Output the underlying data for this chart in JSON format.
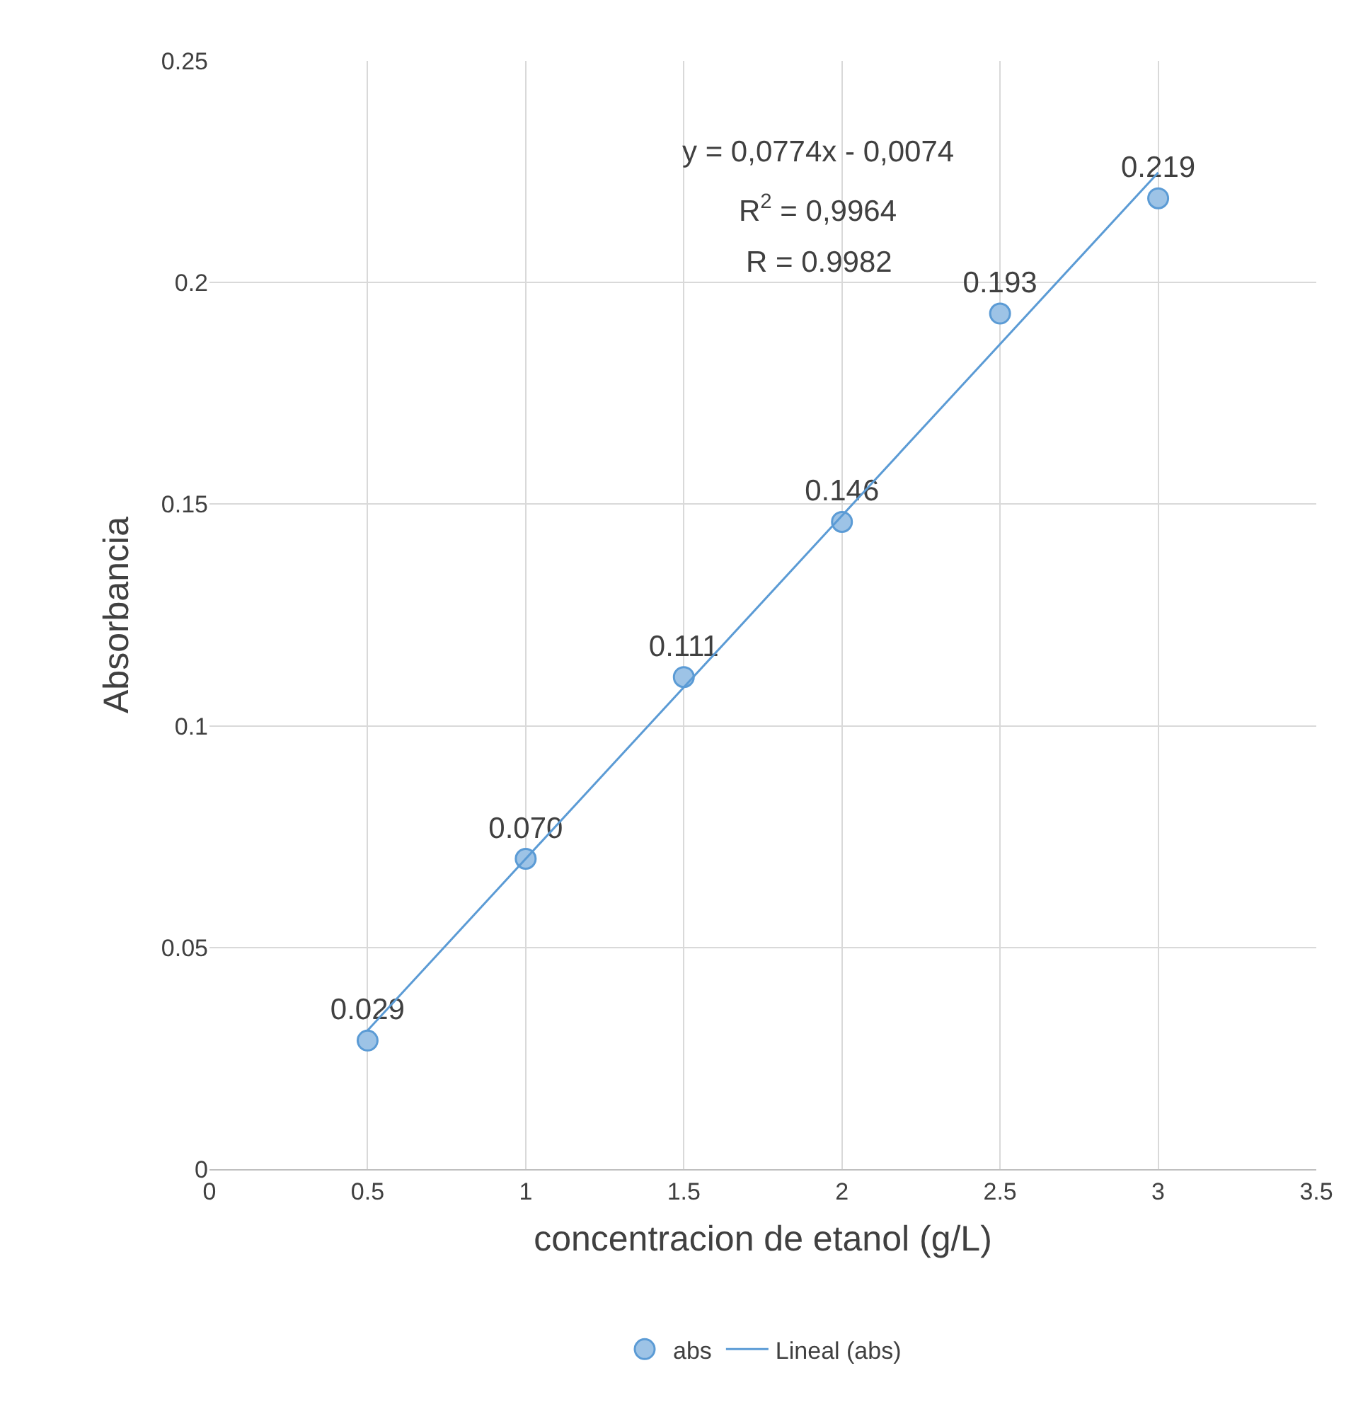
{
  "chart_data": {
    "type": "scatter",
    "xlabel": "concentracion de etanol (g/L)",
    "ylabel": "Absorbancia",
    "x": [
      0.5,
      1,
      1.5,
      2,
      2.5,
      3
    ],
    "series": [
      {
        "name": "abs",
        "marker": "circle",
        "color": "#9dc3e6",
        "values": [
          0.029,
          0.07,
          0.111,
          0.146,
          0.193,
          0.219
        ],
        "value_labels": [
          "0.029",
          "0.070",
          "0.111",
          "0.146",
          "0.193",
          "0.219"
        ]
      },
      {
        "name": "Lineal (abs)",
        "type": "line",
        "color": "#5b9bd5",
        "x": [
          0.5,
          3
        ],
        "values": [
          0.0313,
          0.2248
        ]
      }
    ],
    "annotations": [
      "y = 0,0774x - 0,0074",
      "R$^{2}$ = 0,9964",
      "R = 0.9982"
    ],
    "xlim": [
      0,
      3.5
    ],
    "xticks": [
      0,
      0.5,
      1,
      1.5,
      2,
      2.5,
      3,
      3.5
    ],
    "ylim": [
      0,
      0.25
    ],
    "yticks": [
      0,
      0.05,
      0.1,
      0.15,
      0.2,
      0.25
    ],
    "grid": true,
    "legend": "bottom",
    "line_style": "solid"
  }
}
